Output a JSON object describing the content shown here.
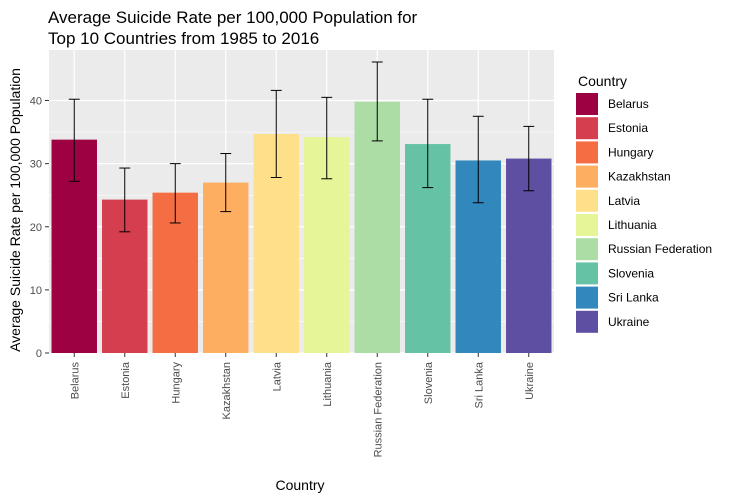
{
  "chart_data": {
    "type": "bar",
    "title": [
      "Average Suicide Rate per 100,000 Population for",
      "Top 10 Countries from 1985 to 2016"
    ],
    "xlabel": "Country",
    "ylabel": "Average Suicide Rate per 100,000 Population",
    "ylim": [
      0,
      48
    ],
    "yticks": [
      0,
      10,
      20,
      30,
      40
    ],
    "grid": true,
    "legend": {
      "title": "Country",
      "placement": "right"
    },
    "categories": [
      "Belarus",
      "Estonia",
      "Hungary",
      "Kazakhstan",
      "Latvia",
      "Lithuania",
      "Russian Federation",
      "Slovenia",
      "Sri Lanka",
      "Ukraine"
    ],
    "values": [
      33.8,
      24.3,
      25.4,
      27.0,
      34.7,
      34.2,
      39.8,
      33.1,
      30.5,
      30.8
    ],
    "error_low": [
      27.2,
      19.2,
      20.6,
      22.4,
      27.8,
      27.6,
      33.6,
      26.2,
      23.8,
      25.7
    ],
    "error_high": [
      40.2,
      29.3,
      30.0,
      31.6,
      41.6,
      40.5,
      46.1,
      40.2,
      37.5,
      35.9
    ],
    "colors": [
      "#9E0142",
      "#D53E4F",
      "#F46D43",
      "#FDAE61",
      "#FEE08B",
      "#E6F598",
      "#ABDDA4",
      "#66C2A5",
      "#3288BD",
      "#5E4FA2"
    ],
    "panel_color": "#EBEBEB",
    "grid_color": "#FFFFFF"
  }
}
